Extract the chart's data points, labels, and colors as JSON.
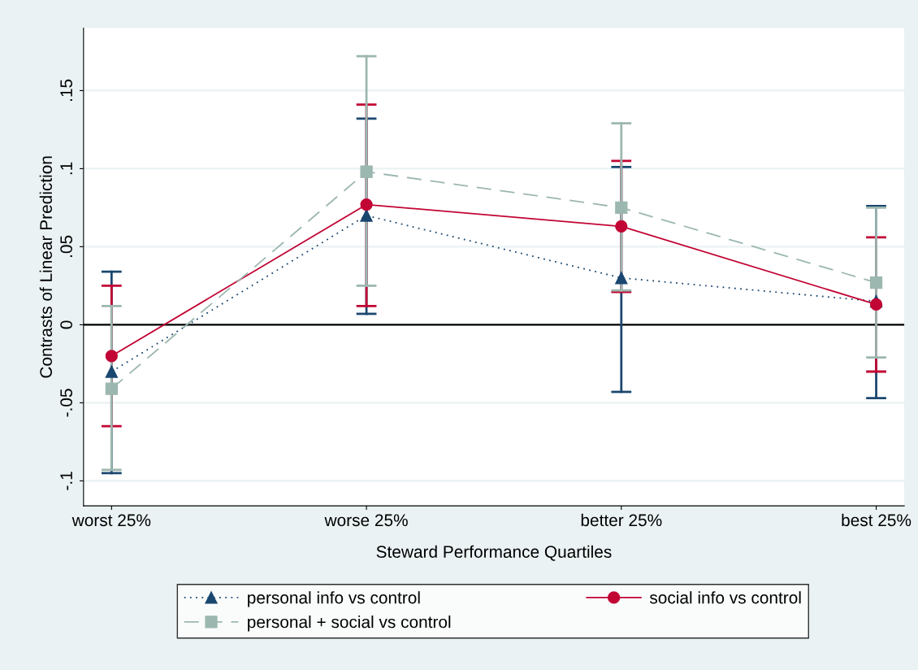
{
  "chart_data": {
    "type": "line",
    "xlabel": "Steward Performance Quartiles",
    "ylabel": "Contrasts of Linear Prediction",
    "categories": [
      "worst 25%",
      "worse 25%",
      "better 25%",
      "best 25%"
    ],
    "series": [
      {
        "name": "personal info vs control",
        "color": "#1a476f",
        "marker": "triangle",
        "line_style": "dotted",
        "values": [
          -0.03,
          0.07,
          0.03,
          0.015
        ],
        "errors": [
          [
            -0.095,
            0.034
          ],
          [
            0.007,
            0.132
          ],
          [
            -0.043,
            0.101
          ],
          [
            -0.047,
            0.076
          ]
        ]
      },
      {
        "name": "social info vs control",
        "color": "#c10534",
        "marker": "circle",
        "line_style": "solid",
        "values": [
          -0.02,
          0.077,
          0.063,
          0.013
        ],
        "errors": [
          [
            -0.065,
            0.025
          ],
          [
            0.012,
            0.141
          ],
          [
            0.021,
            0.105
          ],
          [
            -0.03,
            0.056
          ]
        ]
      },
      {
        "name": "personal + social vs control",
        "color": "#9cb7b0",
        "marker": "square",
        "line_style": "dashed",
        "values": [
          -0.041,
          0.098,
          0.075,
          0.027
        ],
        "errors": [
          [
            -0.093,
            0.012
          ],
          [
            0.025,
            0.172
          ],
          [
            0.022,
            0.129
          ],
          [
            -0.021,
            0.075
          ]
        ]
      }
    ],
    "ylim": [
      -0.116,
      0.19
    ],
    "yticks": [
      {
        "value": -0.1,
        "label": "-.1"
      },
      {
        "value": -0.05,
        "label": "-.05"
      },
      {
        "value": 0,
        "label": "0"
      },
      {
        "value": 0.05,
        "label": ".05"
      },
      {
        "value": 0.1,
        "label": ".1"
      },
      {
        "value": 0.15,
        "label": ".15"
      }
    ],
    "ref_lines": [
      {
        "axis": "y",
        "value": 0,
        "color": "#000000"
      }
    ],
    "grid": "y",
    "legend": "bottom"
  }
}
